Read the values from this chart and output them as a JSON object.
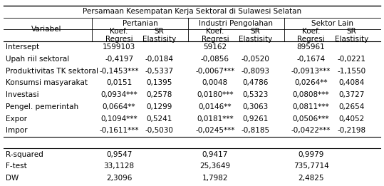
{
  "title": "Persamaan Kesempatan Kerja Sektoral di Sulawesi Selatan",
  "col_groups": [
    "Pertanian",
    "Industri Pengolahan",
    "Sektor Lain"
  ],
  "sub_cols": [
    "Koef.\nRegresi",
    "SR\nElastisity"
  ],
  "variabel_col": "Variabel",
  "rows": [
    {
      "label": "Intersept",
      "vals": [
        "1599103",
        "",
        "59162",
        "",
        "895961",
        ""
      ]
    },
    {
      "label": "Upah riil sektoral",
      "vals": [
        "-0,4197",
        "-0,0184",
        "-0,0856",
        "-0,0520",
        "-0,1674",
        "-0,0221"
      ]
    },
    {
      "label": "Produktivitas TK sektoral",
      "vals": [
        "-0,1453***",
        "-0,5337",
        "-0,0067***",
        "-0,8093",
        "-0,0913***",
        "-1,1550"
      ]
    },
    {
      "label": "Konsumsi masyarakat",
      "vals": [
        "0,0151",
        "0,1395",
        "0,0048",
        "0,4786",
        "0,0264**",
        "0,4084"
      ]
    },
    {
      "label": "Investasi",
      "vals": [
        "0,0934***",
        "0,2578",
        "0,0180***",
        "0,5323",
        "0,0808***",
        "0,3727"
      ]
    },
    {
      "label": "Pengel. pemerintah",
      "vals": [
        "0,0664**",
        "0,1299",
        "0,0146**",
        "0,3063",
        "0,0811***",
        "0,2654"
      ]
    },
    {
      "label": "Expor",
      "vals": [
        "0,1094***",
        "0,5241",
        "0,0181***",
        "0,9261",
        "0,0506***",
        "0,4052"
      ]
    },
    {
      "label": "Impor",
      "vals": [
        "-0,1611***",
        "-0,5030",
        "-0,0245***",
        "-0,8185",
        "-0,0422***",
        "-0,2198"
      ]
    }
  ],
  "stat_rows": [
    {
      "label": "R-squared",
      "vals": [
        "0,9547",
        "",
        "0,9417",
        "",
        "0,9979",
        ""
      ]
    },
    {
      "label": "F-test",
      "vals": [
        "33,1128",
        "",
        "25,3649",
        "",
        "735,7714",
        ""
      ]
    },
    {
      "label": "DW",
      "vals": [
        "2,3096",
        "",
        "1,7982",
        "",
        "2,4825",
        ""
      ]
    }
  ],
  "bg_color": "#ffffff",
  "text_color": "#000000",
  "font_size": 7.5,
  "header_font_size": 7.5
}
